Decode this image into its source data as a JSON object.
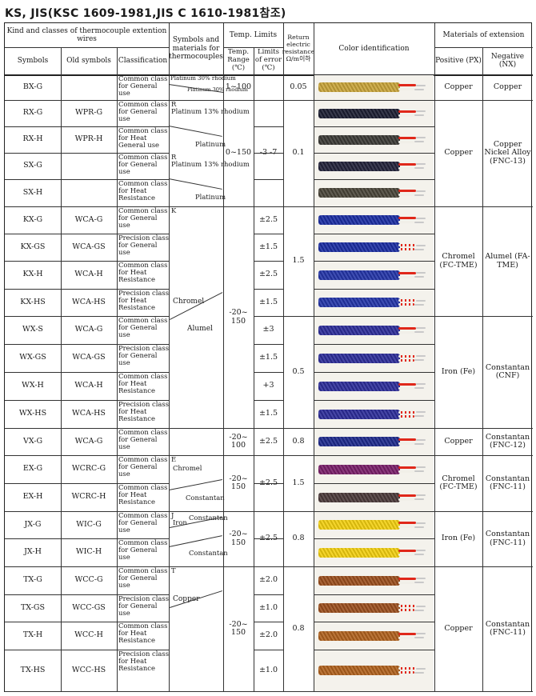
{
  "page_title": "KS, JIS(KSC 1609-1981,JIS C 1610-1981참조)",
  "headers": {
    "kind": "Kind and classes of thermocouple extention wires",
    "symbols": "Symbols",
    "old_symbols": "Old symbols",
    "classification": "Classification",
    "symbols_materials": "Symbols and materials for thermocouples",
    "temp_limits": "Temp. Limits",
    "temp_range": "Temp. Range (℃)",
    "limits_error": "Limits of error (℃)",
    "return_resistance": "Return electric resistance Ω/m이하",
    "color_identification": "Color identification",
    "materials_extension": "Materials of extension",
    "positive": "Positive (PX)",
    "negative": "Negative (NX)"
  },
  "rows": [
    {
      "symbol": "BX-G",
      "old": "",
      "cls": "Common class for General use",
      "err": ""
    },
    {
      "symbol": "RX-G",
      "old": "WPR-G",
      "cls": "Common class for General use",
      "err": ""
    },
    {
      "symbol": "RX-H",
      "old": "WPR-H",
      "cls": "Common class for Heat General use",
      "err": ""
    },
    {
      "symbol": "SX-G",
      "old": "",
      "cls": "Common class for General use",
      "err": ""
    },
    {
      "symbol": "SX-H",
      "old": "",
      "cls": "Common class for Heat Resistance",
      "err": ""
    },
    {
      "symbol": "KX-G",
      "old": "WCA-G",
      "cls": "Common class for General use",
      "err": "±2.5"
    },
    {
      "symbol": "KX-GS",
      "old": "WCA-GS",
      "cls": "Precision class for General use",
      "err": "±1.5"
    },
    {
      "symbol": "KX-H",
      "old": "WCA-H",
      "cls": "Common class for Heat Resistance",
      "err": "±2.5"
    },
    {
      "symbol": "KX-HS",
      "old": "WCA-HS",
      "cls": "Precision class for Heat Resistance",
      "err": "±1.5"
    },
    {
      "symbol": "WX-S",
      "old": "WCA-G",
      "cls": "Common class for General use",
      "err": "±3"
    },
    {
      "symbol": "WX-GS",
      "old": "WCA-GS",
      "cls": "Precision class for General use",
      "err": "±1.5"
    },
    {
      "symbol": "WX-H",
      "old": "WCA-H",
      "cls": "Common class for Heat Resistance",
      "err": "+3"
    },
    {
      "symbol": "WX-HS",
      "old": "WCA-HS",
      "cls": "Precision class for Heat Resistance",
      "err": "±1.5"
    },
    {
      "symbol": "VX-G",
      "old": "WCA-G",
      "cls": "Common class for General use",
      "err": "±2.5"
    },
    {
      "symbol": "EX-G",
      "old": "WCRC-G",
      "cls": "Common class for General use",
      "err": ""
    },
    {
      "symbol": "EX-H",
      "old": "WCRC-H",
      "cls": "Common class for Heat Resistance",
      "err": ""
    },
    {
      "symbol": "JX-G",
      "old": "WIC-G",
      "cls": "Common class for General use",
      "err": ""
    },
    {
      "symbol": "JX-H",
      "old": "WIC-H",
      "cls": "Common class for General use",
      "err": ""
    },
    {
      "symbol": "TX-G",
      "old": "WCC-G",
      "cls": "Common class for General use",
      "err": "±2.0"
    },
    {
      "symbol": "TX-GS",
      "old": "WCC-GS",
      "cls": "Precision class for General use",
      "err": "±1.0"
    },
    {
      "symbol": "TX-H",
      "old": "WCC-H",
      "cls": "Common class for Heat Resistance",
      "err": "±2.0"
    },
    {
      "symbol": "TX-HS",
      "old": "WCC-HS",
      "cls": "Precision class for Heat Resistance",
      "err": "±1.0"
    }
  ],
  "thermo": {
    "b_top": "Platinum 30% rhodium",
    "b_bot": "Platinum 30% rhodium",
    "r_letter": "R",
    "r_top": "Platinum 13% rhodium",
    "r_bot": "Platinum",
    "s_letter": "R",
    "s_top": "Platinum 13% rhodium",
    "s_bot": "Platinum",
    "k_letter": "K",
    "k_top": "Chromel",
    "k_bot": "Alumel",
    "e_letter": "E",
    "e_top": "Chromel",
    "e_bot": "Constantan",
    "j_letter": "J",
    "j_top": "Iron",
    "j_bot": "Constantan",
    "j_bot2": "Constantan",
    "t_letter": "T",
    "t_top": "Copper"
  },
  "groups": {
    "b": {
      "range": "1~100",
      "err": "",
      "res": "0.05",
      "pos": "Copper",
      "neg": "Copper"
    },
    "rs": {
      "range": "0~150",
      "err": "-3 -7",
      "res": "0.1",
      "pos": "Copper",
      "neg": "Copper Nickel Alloy (FNC-13)"
    },
    "kw": {
      "range": "-20~ 150",
      "kres": "1.5",
      "wres": "0.5",
      "kpos": "Chromel (FC-TME)",
      "kneg": "Alumel (FA-TME)",
      "wpos": "Iron (Fe)",
      "wneg": "Constantan (CNF)"
    },
    "v": {
      "range": "-20~ 100",
      "res": "0.8",
      "pos": "Copper",
      "neg": "Constantan (FNC-12)"
    },
    "e": {
      "range": "-20~ 150",
      "err": "±2.5",
      "res": "1.5",
      "pos": "Chromel (FC-TME)",
      "neg": "Constantan (FNC-11)"
    },
    "j": {
      "range": "-20~ 150",
      "err": "±2.5",
      "res": "0.8",
      "pos": "Iron (Fe)",
      "neg": "Constantan (FNC-11)"
    },
    "t": {
      "range": "-20~ 150",
      "res": "0.8",
      "pos": "Copper",
      "neg": "Constantan (FNC-11)"
    }
  },
  "wire_colors": {
    "gray": "#b9b6ad",
    "bx": "#c8a43a",
    "rx_g": "#1c1f32",
    "rx_h": "#3b3a36",
    "sx_g": "#22223a",
    "sx_h": "#4a4539",
    "kx": "#1b2ea3",
    "kx_h": "#2435a8",
    "wx": "#2d2d9a",
    "vx": "#1f2a8c",
    "ex": "#7a1f6a",
    "ex_h": "#4b3a3a",
    "jx": "#f2cf10",
    "tx": "#9b4e1d",
    "tx_h": "#b0621e",
    "red": "#e0271a",
    "white": "#f1efe8"
  }
}
